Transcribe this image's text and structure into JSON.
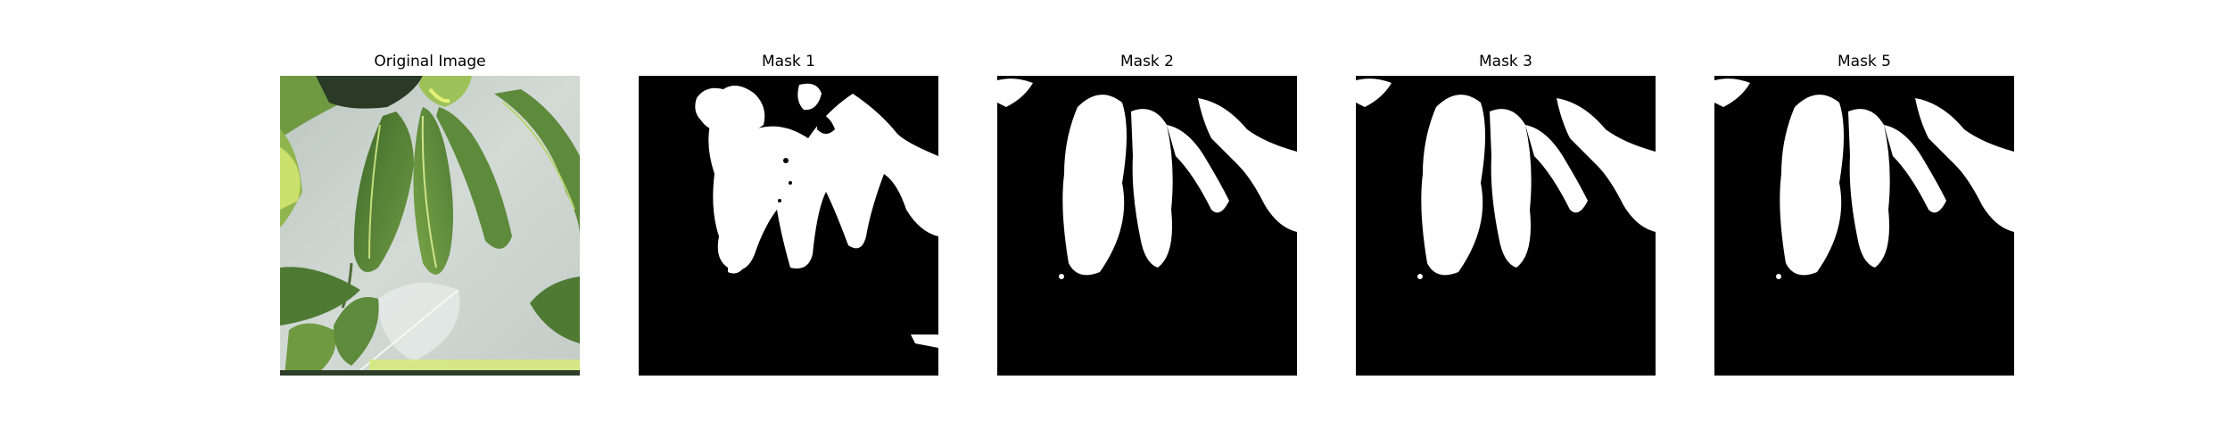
{
  "figure": {
    "panels": [
      {
        "title": "Original Image",
        "kind": "photo",
        "content": "green leaves against a pale gray background"
      },
      {
        "title": "Mask 1",
        "kind": "mask"
      },
      {
        "title": "Mask 2",
        "kind": "mask"
      },
      {
        "title": "Mask 3",
        "kind": "mask"
      },
      {
        "title": "Mask 5",
        "kind": "mask"
      }
    ],
    "colors": {
      "mask_foreground": "#ffffff",
      "mask_background": "#000000",
      "photo_background": "#c9d2cd",
      "leaf_dark": "#3f6a2c",
      "leaf_mid": "#5e8a3b",
      "leaf_light": "#8fb54e",
      "highlight": "#e4f27a"
    }
  }
}
